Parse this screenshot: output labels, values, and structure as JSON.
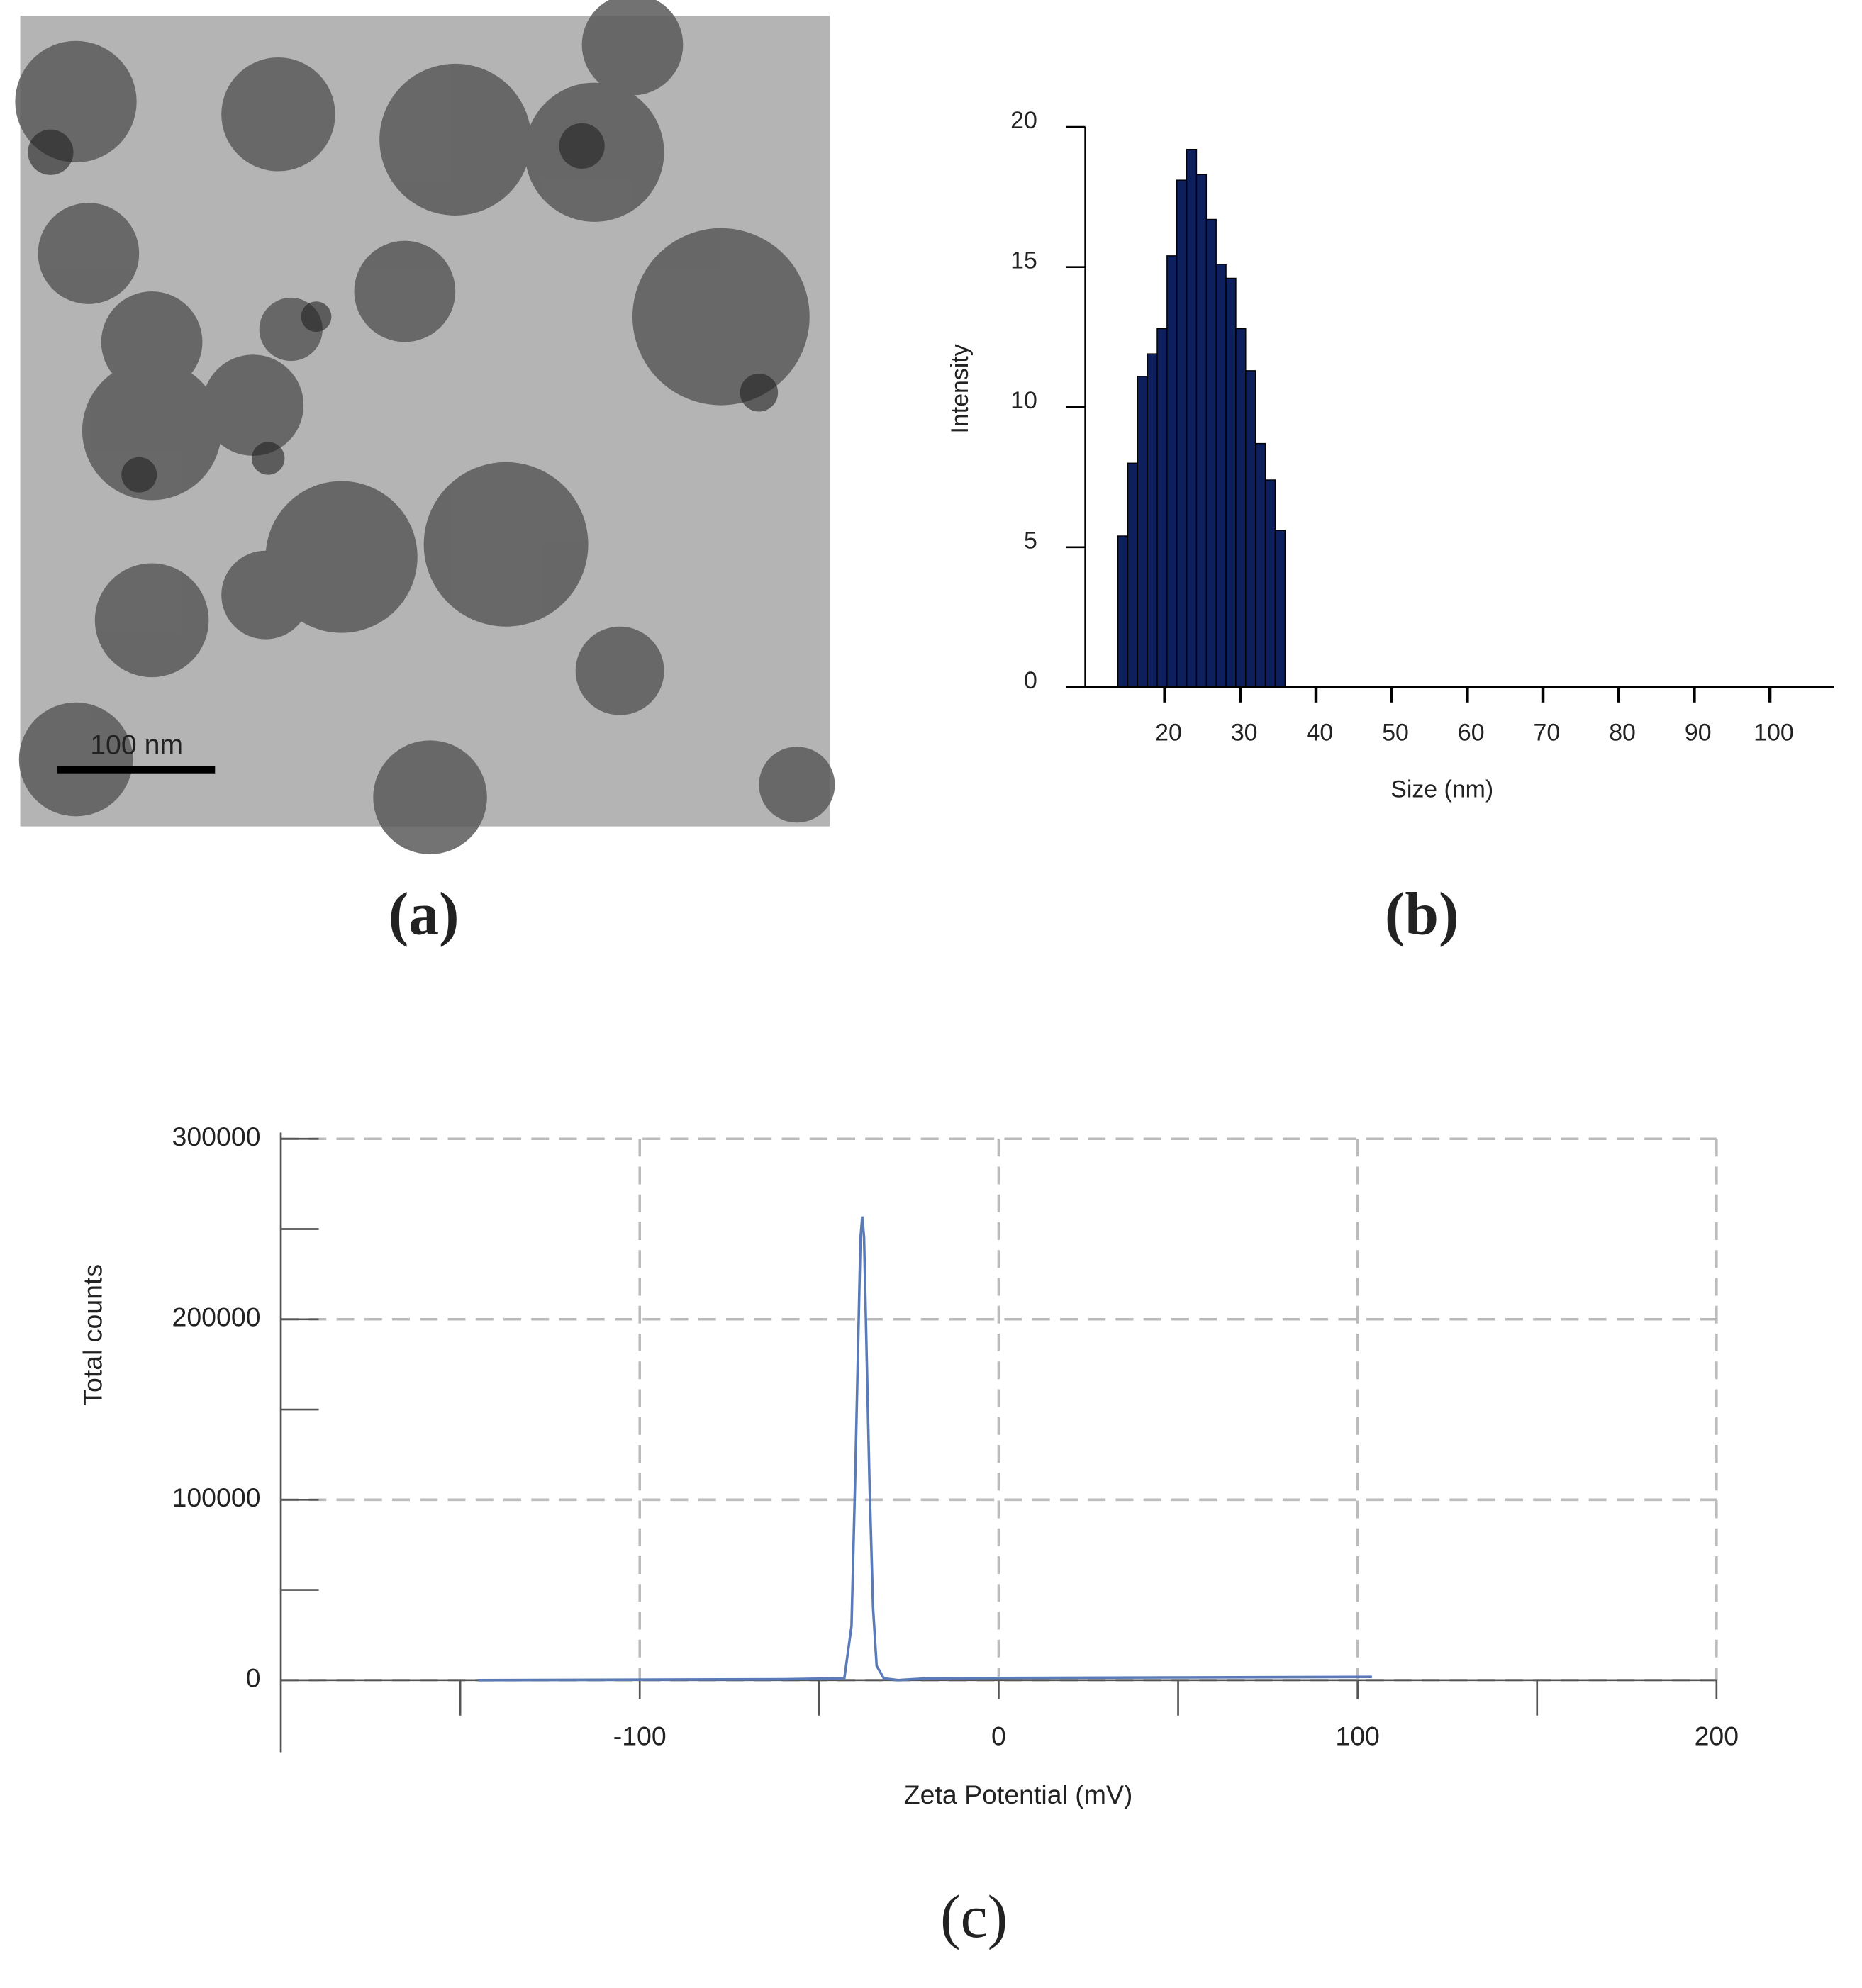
{
  "chart_data": [
    {
      "type": "image",
      "scale_label": "100 nm",
      "caption": "(a)"
    },
    {
      "type": "histogram",
      "caption": "(b)",
      "xlabel": "Size (nm)",
      "ylabel": "Intensity",
      "color": "#0d1f5c",
      "bins": [
        13.8,
        15.1,
        16.4,
        17.7,
        19.0,
        20.3,
        21.6,
        22.9,
        24.2,
        25.5,
        26.8,
        28.1,
        29.4,
        30.7,
        32.0,
        33.3,
        34.6,
        35.9
      ],
      "values": [
        5.4,
        8.0,
        11.1,
        11.9,
        12.8,
        15.4,
        18.1,
        19.2,
        18.3,
        16.7,
        15.1,
        14.6,
        12.8,
        11.3,
        8.7,
        7.4,
        5.6
      ],
      "xlim": [
        9.5,
        108.5
      ],
      "xticks": [
        20,
        30,
        40,
        50,
        60,
        70,
        80,
        90,
        100
      ],
      "ylim": [
        0,
        20
      ],
      "yticks": [
        0,
        5,
        10,
        15,
        20
      ]
    },
    {
      "type": "line",
      "caption": "(c)",
      "xlabel": "Zeta Potential (mV)",
      "ylabel": "Total counts",
      "color": "#5b7bb8",
      "grid": true,
      "x": [
        -145,
        -60,
        -43,
        -41,
        -40,
        -39,
        -38.5,
        -38,
        -37.5,
        -37,
        -36,
        -35,
        -34,
        -32,
        -28,
        -20,
        0,
        50,
        104
      ],
      "values": [
        0,
        500,
        1000,
        30000,
        110000,
        200000,
        245000,
        257000,
        245000,
        200000,
        110000,
        40000,
        8000,
        1000,
        0,
        1000,
        1200,
        1500,
        1800
      ],
      "xlim": [
        -200,
        200
      ],
      "xticks": [
        -100,
        0,
        100,
        200
      ],
      "xminor": [
        -150,
        -50,
        50,
        150
      ],
      "ylim": [
        0,
        300000
      ],
      "yticks": [
        0,
        100000,
        200000,
        300000
      ],
      "yminor": [
        50000,
        150000,
        250000
      ]
    }
  ]
}
